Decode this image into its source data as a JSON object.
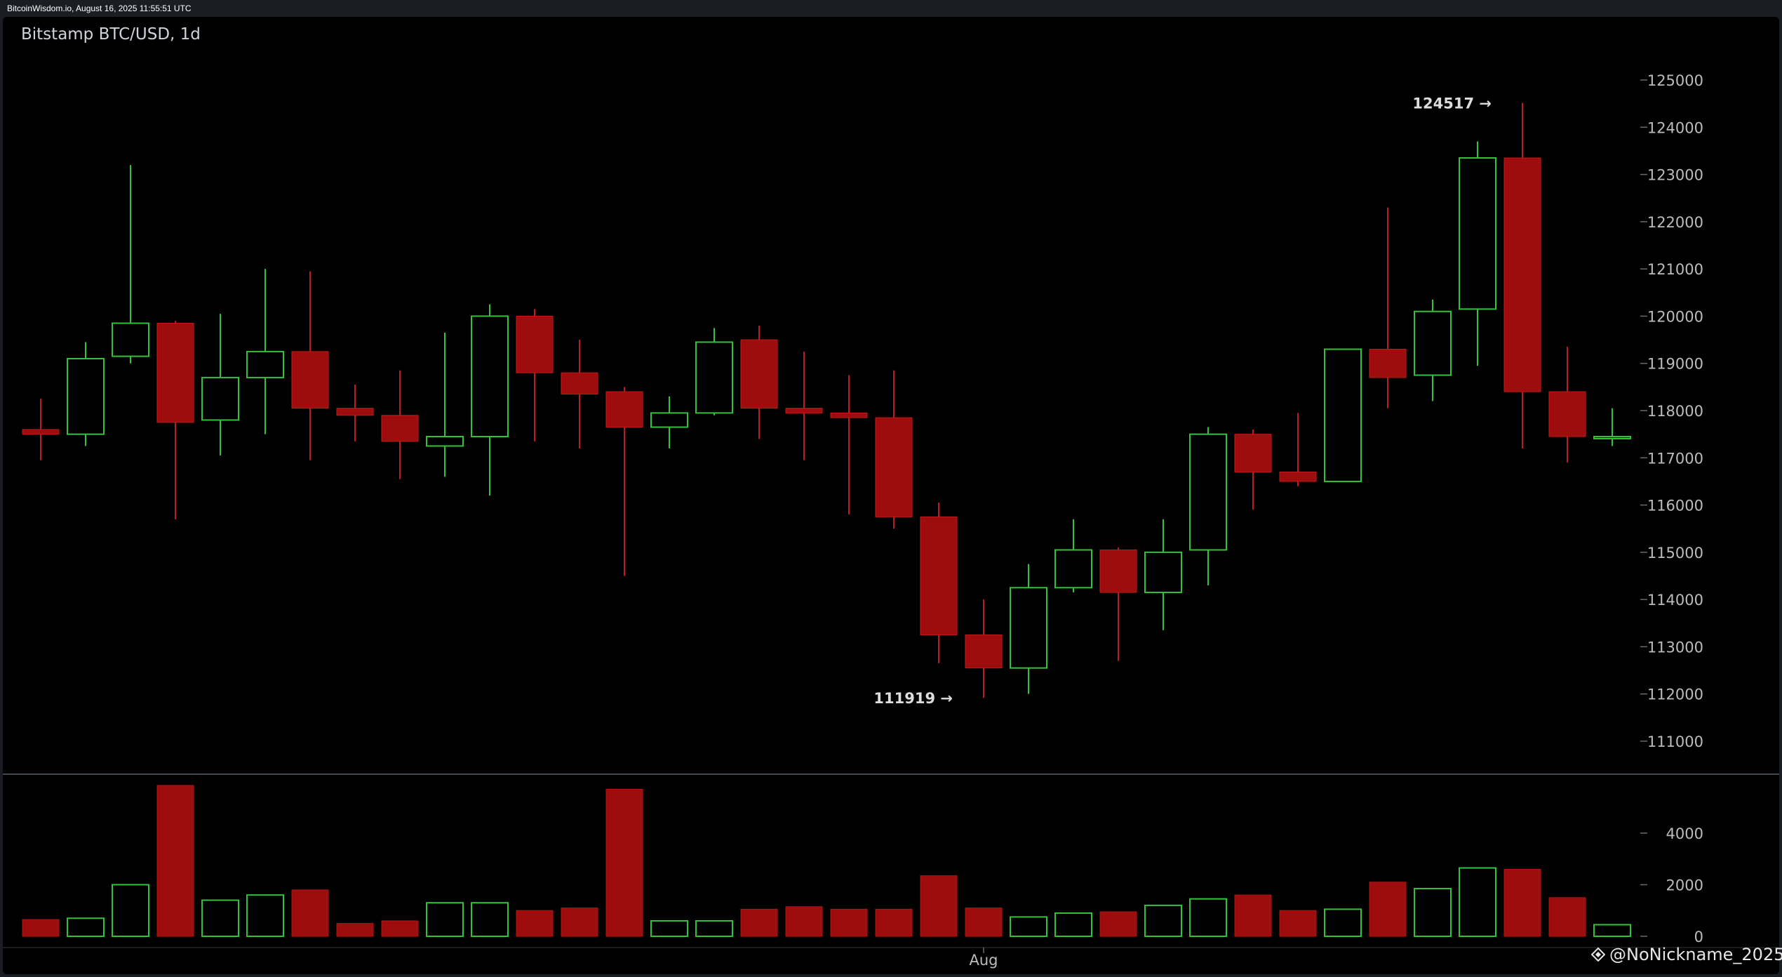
{
  "header": {
    "source_text": "BitcoinWisdom.io, August 16, 2025 11:55:51 UTC"
  },
  "watermark": {
    "text": "@NoNickname_2025"
  },
  "colors": {
    "background": "#000000",
    "up": "#33c23a",
    "down": "#9e0d0d",
    "axis_text": "#bcbcbc",
    "annotation_text": "#dddddd"
  },
  "chart_data": {
    "type": "candlestick",
    "title": "Bitstamp BTC/USD, 1d",
    "price_axis": {
      "ticks": [
        111000,
        112000,
        113000,
        114000,
        115000,
        116000,
        117000,
        118000,
        119000,
        120000,
        121000,
        122000,
        123000,
        124000,
        125000
      ],
      "range": [
        110300,
        125500
      ]
    },
    "volume_axis": {
      "ticks": [
        0,
        2000,
        4000
      ],
      "range": [
        0,
        5900
      ]
    },
    "x_axis": {
      "labels": [
        {
          "label": "Aug",
          "index": 21
        }
      ]
    },
    "annotations": [
      {
        "label": "124517 →",
        "index": 33,
        "value": 124517,
        "type": "high"
      },
      {
        "label": "111919 →",
        "index": 21,
        "value": 111919,
        "type": "low"
      }
    ],
    "candles": [
      {
        "o": 117600,
        "h": 118250,
        "l": 116950,
        "c": 117500,
        "v": 650
      },
      {
        "o": 117500,
        "h": 119450,
        "l": 117250,
        "c": 119100,
        "v": 700
      },
      {
        "o": 119150,
        "h": 123200,
        "l": 119000,
        "c": 119850,
        "v": 2000
      },
      {
        "o": 119850,
        "h": 119900,
        "l": 115700,
        "c": 117750,
        "v": 5850
      },
      {
        "o": 117800,
        "h": 120050,
        "l": 117050,
        "c": 118700,
        "v": 1400
      },
      {
        "o": 118700,
        "h": 121000,
        "l": 117500,
        "c": 119250,
        "v": 1600
      },
      {
        "o": 119250,
        "h": 120950,
        "l": 116950,
        "c": 118050,
        "v": 1800
      },
      {
        "o": 118050,
        "h": 118550,
        "l": 117350,
        "c": 117900,
        "v": 500
      },
      {
        "o": 117900,
        "h": 118850,
        "l": 116550,
        "c": 117350,
        "v": 600
      },
      {
        "o": 117250,
        "h": 119650,
        "l": 116600,
        "c": 117450,
        "v": 1300
      },
      {
        "o": 117450,
        "h": 120250,
        "l": 116200,
        "c": 120000,
        "v": 1300
      },
      {
        "o": 120000,
        "h": 120150,
        "l": 117350,
        "c": 118800,
        "v": 1000
      },
      {
        "o": 118800,
        "h": 119500,
        "l": 117200,
        "c": 118350,
        "v": 1100
      },
      {
        "o": 118400,
        "h": 118500,
        "l": 114500,
        "c": 117650,
        "v": 5700
      },
      {
        "o": 117650,
        "h": 118300,
        "l": 117200,
        "c": 117950,
        "v": 600
      },
      {
        "o": 117950,
        "h": 119750,
        "l": 117900,
        "c": 119450,
        "v": 600
      },
      {
        "o": 119500,
        "h": 119800,
        "l": 117400,
        "c": 118050,
        "v": 1050
      },
      {
        "o": 118050,
        "h": 119250,
        "l": 116950,
        "c": 117950,
        "v": 1150
      },
      {
        "o": 117950,
        "h": 118750,
        "l": 115800,
        "c": 117850,
        "v": 1050
      },
      {
        "o": 117850,
        "h": 118850,
        "l": 115500,
        "c": 115750,
        "v": 1050
      },
      {
        "o": 115750,
        "h": 116050,
        "l": 112650,
        "c": 113250,
        "v": 2350
      },
      {
        "o": 113250,
        "h": 114000,
        "l": 111919,
        "c": 112550,
        "v": 1100
      },
      {
        "o": 112550,
        "h": 114750,
        "l": 112000,
        "c": 114250,
        "v": 750
      },
      {
        "o": 114250,
        "h": 115700,
        "l": 114150,
        "c": 115050,
        "v": 900
      },
      {
        "o": 115050,
        "h": 115100,
        "l": 112700,
        "c": 114150,
        "v": 950
      },
      {
        "o": 114150,
        "h": 115700,
        "l": 113350,
        "c": 115000,
        "v": 1200
      },
      {
        "o": 115050,
        "h": 117650,
        "l": 114300,
        "c": 117500,
        "v": 1450
      },
      {
        "o": 117500,
        "h": 117600,
        "l": 115900,
        "c": 116700,
        "v": 1600
      },
      {
        "o": 116700,
        "h": 117950,
        "l": 116400,
        "c": 116500,
        "v": 1000
      },
      {
        "o": 116500,
        "h": 119300,
        "l": 116500,
        "c": 119300,
        "v": 1050
      },
      {
        "o": 119300,
        "h": 122300,
        "l": 118050,
        "c": 118700,
        "v": 2100
      },
      {
        "o": 118750,
        "h": 120350,
        "l": 118200,
        "c": 120100,
        "v": 1850
      },
      {
        "o": 120150,
        "h": 123700,
        "l": 118950,
        "c": 123350,
        "v": 2650
      },
      {
        "o": 123350,
        "h": 124517,
        "l": 117200,
        "c": 118400,
        "v": 2600
      },
      {
        "o": 118400,
        "h": 119350,
        "l": 116900,
        "c": 117450,
        "v": 1500
      },
      {
        "o": 117450,
        "h": 118050,
        "l": 117250,
        "c": 117450,
        "v": 450
      }
    ]
  }
}
